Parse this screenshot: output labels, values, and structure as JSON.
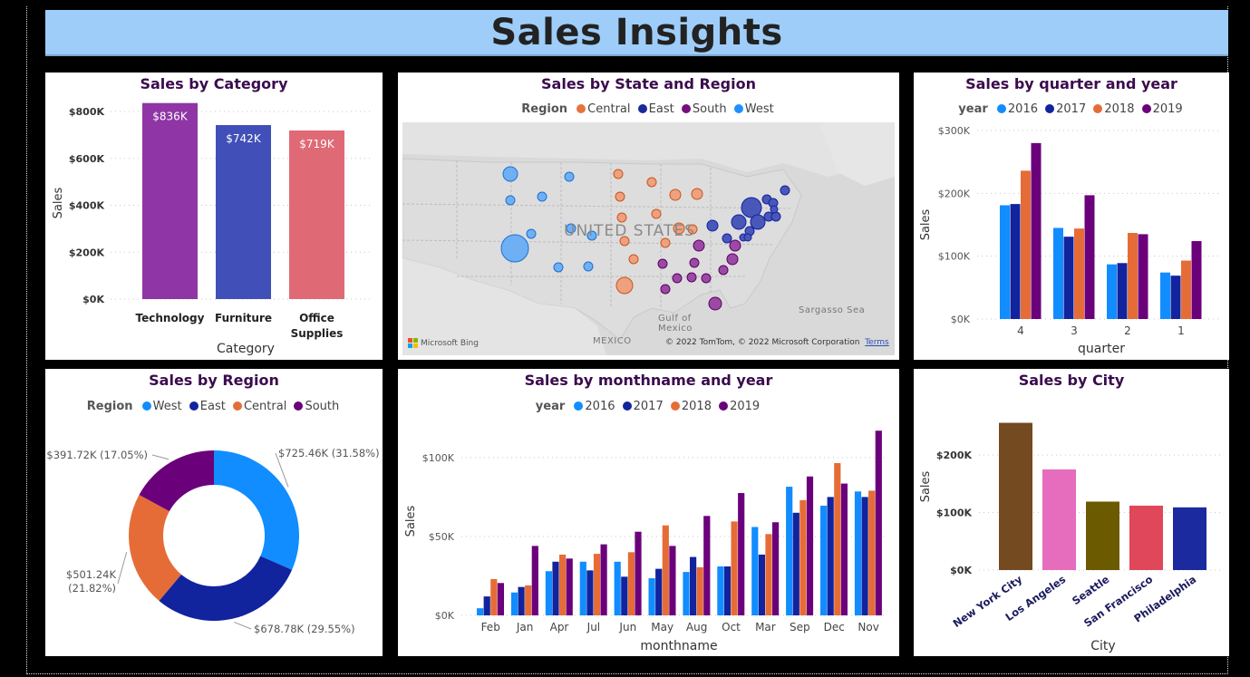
{
  "page": {
    "title": "Sales Insights"
  },
  "category_chart": {
    "title": "Sales by Category",
    "chart_data": {
      "type": "bar",
      "categories": [
        "Technology",
        "Furniture",
        "Office Supplies"
      ],
      "category_label_lines": [
        [
          "Technology"
        ],
        [
          "Furniture"
        ],
        [
          "Office",
          "Supplies"
        ]
      ],
      "values": [
        836,
        742,
        719
      ],
      "data_labels": [
        "$836K",
        "$742K",
        "$719K"
      ],
      "colors": [
        "#8f35a6",
        "#4150b8",
        "#df6a75"
      ],
      "xlabel": "Category",
      "ylabel": "Sales",
      "ylim": [
        0,
        800
      ],
      "yticks": [
        0,
        200,
        400,
        600,
        800
      ],
      "ytick_labels": [
        "$0K",
        "$200K",
        "$400K",
        "$600K",
        "$800K"
      ]
    }
  },
  "state_region_map": {
    "title": "Sales by State and Region",
    "legend_title": "Region",
    "legend": [
      {
        "name": "Central",
        "color": "#e8733d"
      },
      {
        "name": "East",
        "color": "#1b2a9a"
      },
      {
        "name": "South",
        "color": "#760f7b"
      },
      {
        "name": "West",
        "color": "#1e90ff"
      }
    ],
    "labels": {
      "country": "UNITED STATES",
      "gulf_line1": "Gulf of",
      "gulf_line2": "Mexico",
      "mexico": "MEXICO",
      "sargasso": "Sargasso Sea",
      "bing": "Microsoft Bing",
      "credit": "© 2022 TomTom, © 2022 Microsoft Corporation",
      "terms": "Terms"
    }
  },
  "quarter_chart": {
    "title": "Sales by quarter and year",
    "legend_title": "year",
    "chart_data": {
      "type": "bar",
      "categories": [
        "4",
        "3",
        "2",
        "1"
      ],
      "series": [
        {
          "name": "2016",
          "color": "#118dff",
          "values": [
            181,
            145,
            87,
            74
          ]
        },
        {
          "name": "2017",
          "color": "#12239e",
          "values": [
            183,
            131,
            89,
            69
          ]
        },
        {
          "name": "2018",
          "color": "#e66c37",
          "values": [
            236,
            144,
            137,
            93
          ]
        },
        {
          "name": "2019",
          "color": "#6b007b",
          "values": [
            280,
            197,
            135,
            124
          ]
        }
      ],
      "xlabel": "quarter",
      "ylabel": "Sales",
      "ylim": [
        0,
        300
      ],
      "yticks": [
        0,
        100,
        200,
        300
      ],
      "ytick_labels": [
        "$0K",
        "$100K",
        "$200K",
        "$300K"
      ]
    }
  },
  "region_chart": {
    "title": "Sales by Region",
    "legend_title": "Region",
    "legend": [
      {
        "name": "West",
        "color": "#118dff"
      },
      {
        "name": "East",
        "color": "#12239e"
      },
      {
        "name": "Central",
        "color": "#e66c37"
      },
      {
        "name": "South",
        "color": "#6b007b"
      }
    ],
    "chart_data": {
      "type": "pie",
      "slices": [
        {
          "name": "West",
          "value": 725.46,
          "color": "#118dff",
          "label": "$725.46K (31.58%)"
        },
        {
          "name": "East",
          "value": 678.78,
          "color": "#12239e",
          "label": "$678.78K (29.55%)"
        },
        {
          "name": "Central",
          "value": 501.24,
          "color": "#e66c37",
          "label_lines": [
            "$501.24K",
            "(21.82%)"
          ]
        },
        {
          "name": "South",
          "value": 391.72,
          "color": "#6b007b",
          "label": "$391.72K (17.05%)"
        }
      ]
    }
  },
  "month_chart": {
    "title": "Sales by monthname and year",
    "legend_title": "year",
    "chart_data": {
      "type": "bar",
      "categories": [
        "Feb",
        "Jan",
        "Apr",
        "Jul",
        "Jun",
        "May",
        "Aug",
        "Oct",
        "Mar",
        "Sep",
        "Dec",
        "Nov"
      ],
      "series": [
        {
          "name": "2016",
          "color": "#118dff",
          "values": [
            4.5,
            14.5,
            28,
            34,
            34,
            23.5,
            27.5,
            31,
            56,
            81.5,
            69.5,
            78.5
          ]
        },
        {
          "name": "2017",
          "color": "#12239e",
          "values": [
            12,
            18,
            34,
            28.5,
            24.5,
            29.5,
            37,
            31,
            38.5,
            65,
            75,
            75
          ]
        },
        {
          "name": "2018",
          "color": "#e66c37",
          "values": [
            23,
            19,
            38.5,
            39,
            40,
            57,
            30.5,
            59.5,
            51.5,
            73,
            96.5,
            79
          ]
        },
        {
          "name": "2019",
          "color": "#6b007b",
          "values": [
            20.5,
            44,
            36,
            45,
            53,
            44,
            63,
            77.5,
            59,
            88,
            83.5,
            117
          ]
        }
      ],
      "xlabel": "monthname",
      "ylabel": "Sales",
      "ylim": [
        0,
        120
      ],
      "yticks": [
        0,
        50,
        100
      ],
      "ytick_labels": [
        "$0K",
        "$50K",
        "$100K"
      ]
    }
  },
  "city_chart": {
    "title": "Sales by City",
    "chart_data": {
      "type": "bar",
      "categories": [
        "New York City",
        "Los Angeles",
        "Seattle",
        "San Francisco",
        "Philadelphia"
      ],
      "values": [
        256,
        175,
        119,
        112,
        109
      ],
      "colors": [
        "#744a20",
        "#e66cbe",
        "#6b5a00",
        "#e0475a",
        "#1c2aa0"
      ],
      "xlabel": "City",
      "ylabel": "Sales",
      "ylim": [
        0,
        260
      ],
      "yticks": [
        0,
        100,
        200
      ],
      "ytick_labels": [
        "$0K",
        "$100K",
        "$200K"
      ]
    }
  }
}
